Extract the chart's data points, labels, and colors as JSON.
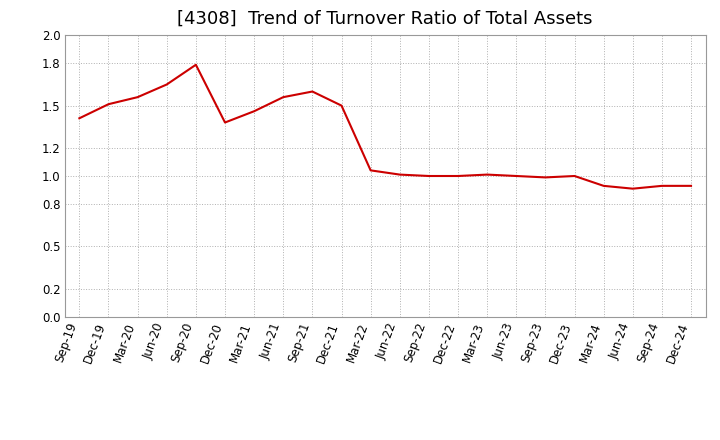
{
  "title": "[4308]  Trend of Turnover Ratio of Total Assets",
  "line_color": "#cc0000",
  "background_color": "#ffffff",
  "grid_color": "#b0b0b0",
  "labels": [
    "Sep-19",
    "Dec-19",
    "Mar-20",
    "Jun-20",
    "Sep-20",
    "Dec-20",
    "Mar-21",
    "Jun-21",
    "Sep-21",
    "Dec-21",
    "Mar-22",
    "Jun-22",
    "Sep-22",
    "Dec-22",
    "Mar-23",
    "Jun-23",
    "Sep-23",
    "Dec-23",
    "Mar-24",
    "Jun-24",
    "Sep-24",
    "Dec-24"
  ],
  "values": [
    1.41,
    1.51,
    1.56,
    1.65,
    1.79,
    1.38,
    1.46,
    1.56,
    1.6,
    1.5,
    1.04,
    1.01,
    1.0,
    1.0,
    1.01,
    1.0,
    0.99,
    1.0,
    0.93,
    0.91,
    0.93,
    0.93
  ],
  "ylim": [
    0.0,
    2.0
  ],
  "yticks": [
    0.0,
    0.2,
    0.5,
    0.8,
    1.0,
    1.2,
    1.5,
    1.8,
    2.0
  ],
  "title_fontsize": 13,
  "tick_fontsize": 8.5
}
